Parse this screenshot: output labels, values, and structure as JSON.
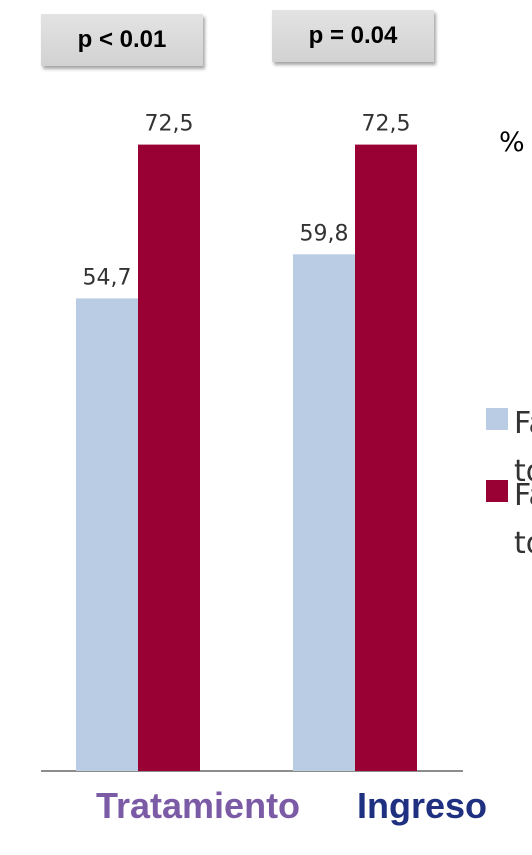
{
  "p_values": [
    "p < 0.01",
    "p = 0.04"
  ],
  "unit_label": "%",
  "legend": [
    {
      "text": "Fá tó",
      "color": "#b9cce4"
    },
    {
      "text": "Fá tó",
      "color": "#990033"
    }
  ],
  "chart_data": {
    "type": "bar",
    "categories": [
      "Tratamiento",
      "Ingreso"
    ],
    "series": [
      {
        "values": [
          54.7,
          59.8
        ],
        "color": "#b9cce4"
      },
      {
        "values": [
          72.5,
          72.5
        ],
        "color": "#990033"
      }
    ],
    "data_labels": [
      [
        "54,7",
        "59,8"
      ],
      [
        "72,5",
        "72,5"
      ]
    ],
    "ylim": [
      0,
      100
    ],
    "category_colors": [
      "#7b5aa6",
      "#1f3080"
    ],
    "grid": false
  }
}
